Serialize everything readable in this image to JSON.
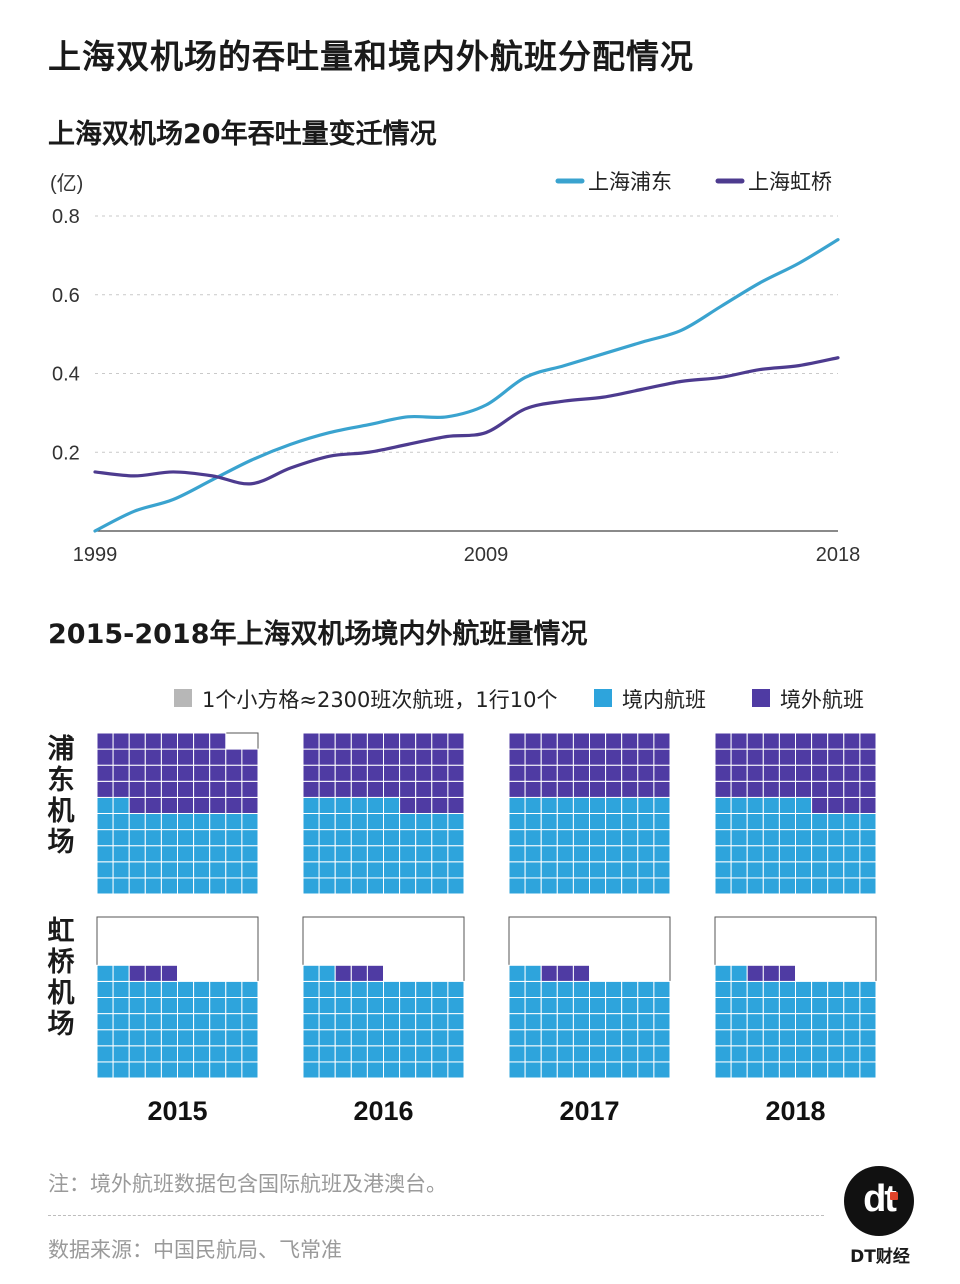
{
  "header": {
    "title": "上海双机场的吞吐量和境内外航班分配情况",
    "line_title": "上海双机场20年吞吐量变迁情况",
    "grid_title": "2015-2018年上海双机场境内外航班量情况"
  },
  "colors": {
    "pudong": "#3aa3cf",
    "hongqiao": "#4d3b8f",
    "domestic": "#2ea4dc",
    "international": "#4f3ba3",
    "empty": "#ffffff"
  },
  "chart_data": [
    {
      "type": "line",
      "title": "上海双机场20年吞吐量变迁情况",
      "ylabel": "(亿)",
      "ylim": [
        0,
        0.8
      ],
      "yticks": [
        "0.2",
        "0.4",
        "0.6",
        "0.8"
      ],
      "xlim": [
        1999,
        2018
      ],
      "xticks": [
        "1999",
        "2009",
        "2018"
      ],
      "grid": true,
      "legend": "top-right",
      "series": [
        {
          "name": "上海浦东",
          "x": [
            1999,
            2000,
            2001,
            2002,
            2003,
            2004,
            2005,
            2006,
            2007,
            2008,
            2009,
            2010,
            2011,
            2012,
            2013,
            2014,
            2015,
            2016,
            2017,
            2018
          ],
          "values": [
            0.0,
            0.05,
            0.08,
            0.13,
            0.18,
            0.22,
            0.25,
            0.27,
            0.29,
            0.29,
            0.32,
            0.39,
            0.42,
            0.45,
            0.48,
            0.51,
            0.57,
            0.63,
            0.68,
            0.74
          ]
        },
        {
          "name": "上海虹桥",
          "x": [
            1999,
            2000,
            2001,
            2002,
            2003,
            2004,
            2005,
            2006,
            2007,
            2008,
            2009,
            2010,
            2011,
            2012,
            2013,
            2014,
            2015,
            2016,
            2017,
            2018
          ],
          "values": [
            0.15,
            0.14,
            0.15,
            0.14,
            0.12,
            0.16,
            0.19,
            0.2,
            0.22,
            0.24,
            0.25,
            0.31,
            0.33,
            0.34,
            0.36,
            0.38,
            0.39,
            0.41,
            0.42,
            0.44
          ]
        }
      ]
    },
    {
      "type": "waffle",
      "title": "2015-2018年上海双机场境内外航班量情况",
      "unit_note": "1个小方格≈2300班次航班，1行10个",
      "legend": [
        {
          "key": "unit",
          "label": "1个小方格≈2300班次航班，1行10个",
          "color": "#b7b7b7"
        },
        {
          "key": "domestic",
          "label": "境内航班",
          "color": "#2ea4dc"
        },
        {
          "key": "international",
          "label": "境外航班",
          "color": "#4f3ba3"
        }
      ],
      "airports": [
        {
          "name": "浦东机场",
          "years": [
            {
              "year": "2015",
              "domestic": 52,
              "international": 46
            },
            {
              "year": "2016",
              "domestic": 56,
              "international": 48
            },
            {
              "year": "2017",
              "domestic": 60,
              "international": 46
            },
            {
              "year": "2018",
              "domestic": 56,
              "international": 55
            }
          ]
        },
        {
          "name": "虹桥机场",
          "years": [
            {
              "year": "2015",
              "domestic": 62,
              "international": 3
            },
            {
              "year": "2016",
              "domestic": 62,
              "international": 3
            },
            {
              "year": "2017",
              "domestic": 62,
              "international": 3
            },
            {
              "year": "2018",
              "domestic": 62,
              "international": 3
            }
          ]
        }
      ],
      "year_labels": [
        "2015",
        "2016",
        "2017",
        "2018"
      ]
    }
  ],
  "notes": {
    "footnote": "注：境外航班数据包含国际航班及港澳台。",
    "source": "数据来源：中国民航局、飞常准"
  },
  "logo": {
    "mark": "dt",
    "text": "DT财经"
  }
}
